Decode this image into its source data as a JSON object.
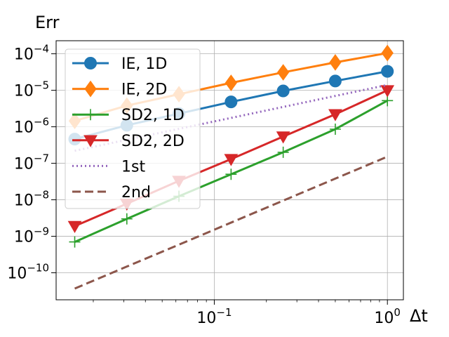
{
  "chart_data": {
    "type": "line",
    "title": "",
    "ylabel": "Err",
    "xlabel": "Δt",
    "xscale": "log",
    "yscale": "log",
    "xlim": [
      0.0122,
      1.237
    ],
    "ylim": [
      1.82e-11,
      0.000228
    ],
    "grid": true,
    "legend_position": "upper-left",
    "x": [
      0.015625,
      0.03125,
      0.0625,
      0.125,
      0.25,
      0.5,
      1.0
    ],
    "x_ticks": [
      {
        "value": 0.1,
        "base": "10",
        "exp": "−1"
      },
      {
        "value": 1.0,
        "base": "10",
        "exp": "0"
      }
    ],
    "y_ticks": [
      {
        "value": 1e-10,
        "base": "10",
        "exp": "−10"
      },
      {
        "value": 1e-09,
        "base": "10",
        "exp": "−9"
      },
      {
        "value": 1e-08,
        "base": "10",
        "exp": "−8"
      },
      {
        "value": 1e-07,
        "base": "10",
        "exp": "−7"
      },
      {
        "value": 1e-06,
        "base": "10",
        "exp": "−6"
      },
      {
        "value": 1e-05,
        "base": "10",
        "exp": "−5"
      },
      {
        "value": 0.0001,
        "base": "10",
        "exp": "−4"
      }
    ],
    "series": [
      {
        "name": "IE, 1D",
        "color": "#1f77b4",
        "linestyle": "solid",
        "marker": "circle",
        "values": [
          4.6e-07,
          1.1e-06,
          2.3e-06,
          4.8e-06,
          9.6e-06,
          1.8e-05,
          3.3e-05
        ]
      },
      {
        "name": "IE, 2D",
        "color": "#ff7f0e",
        "linestyle": "solid",
        "marker": "diamond",
        "values": [
          1.45e-06,
          3.8e-06,
          7.8e-06,
          1.6e-05,
          3.1e-05,
          5.8e-05,
          0.000105
        ]
      },
      {
        "name": "SD2, 1D",
        "color": "#2ca02c",
        "linestyle": "solid",
        "marker": "plus",
        "values": [
          7e-10,
          3e-09,
          1.25e-08,
          5e-08,
          2e-07,
          8.6e-07,
          5.2e-06
        ]
      },
      {
        "name": "SD2, 2D",
        "color": "#d62728",
        "linestyle": "solid",
        "marker": "triangle-down",
        "values": [
          1.9e-09,
          7.8e-09,
          3.3e-08,
          1.3e-07,
          5.4e-07,
          2.2e-06,
          1e-05
        ]
      },
      {
        "name": "1st",
        "color": "#9467bd",
        "linestyle": "dotted",
        "marker": "none",
        "values": [
          2.2e-07,
          4.4e-07,
          8.8e-07,
          1.75e-06,
          3.5e-06,
          7e-06,
          1.4e-05
        ]
      },
      {
        "name": "2nd",
        "color": "#8c564b",
        "linestyle": "dashed",
        "marker": "none",
        "values": [
          3.7e-11,
          1.48e-10,
          5.9e-10,
          2.37e-09,
          9.5e-09,
          3.8e-08,
          1.52e-07
        ]
      }
    ]
  }
}
